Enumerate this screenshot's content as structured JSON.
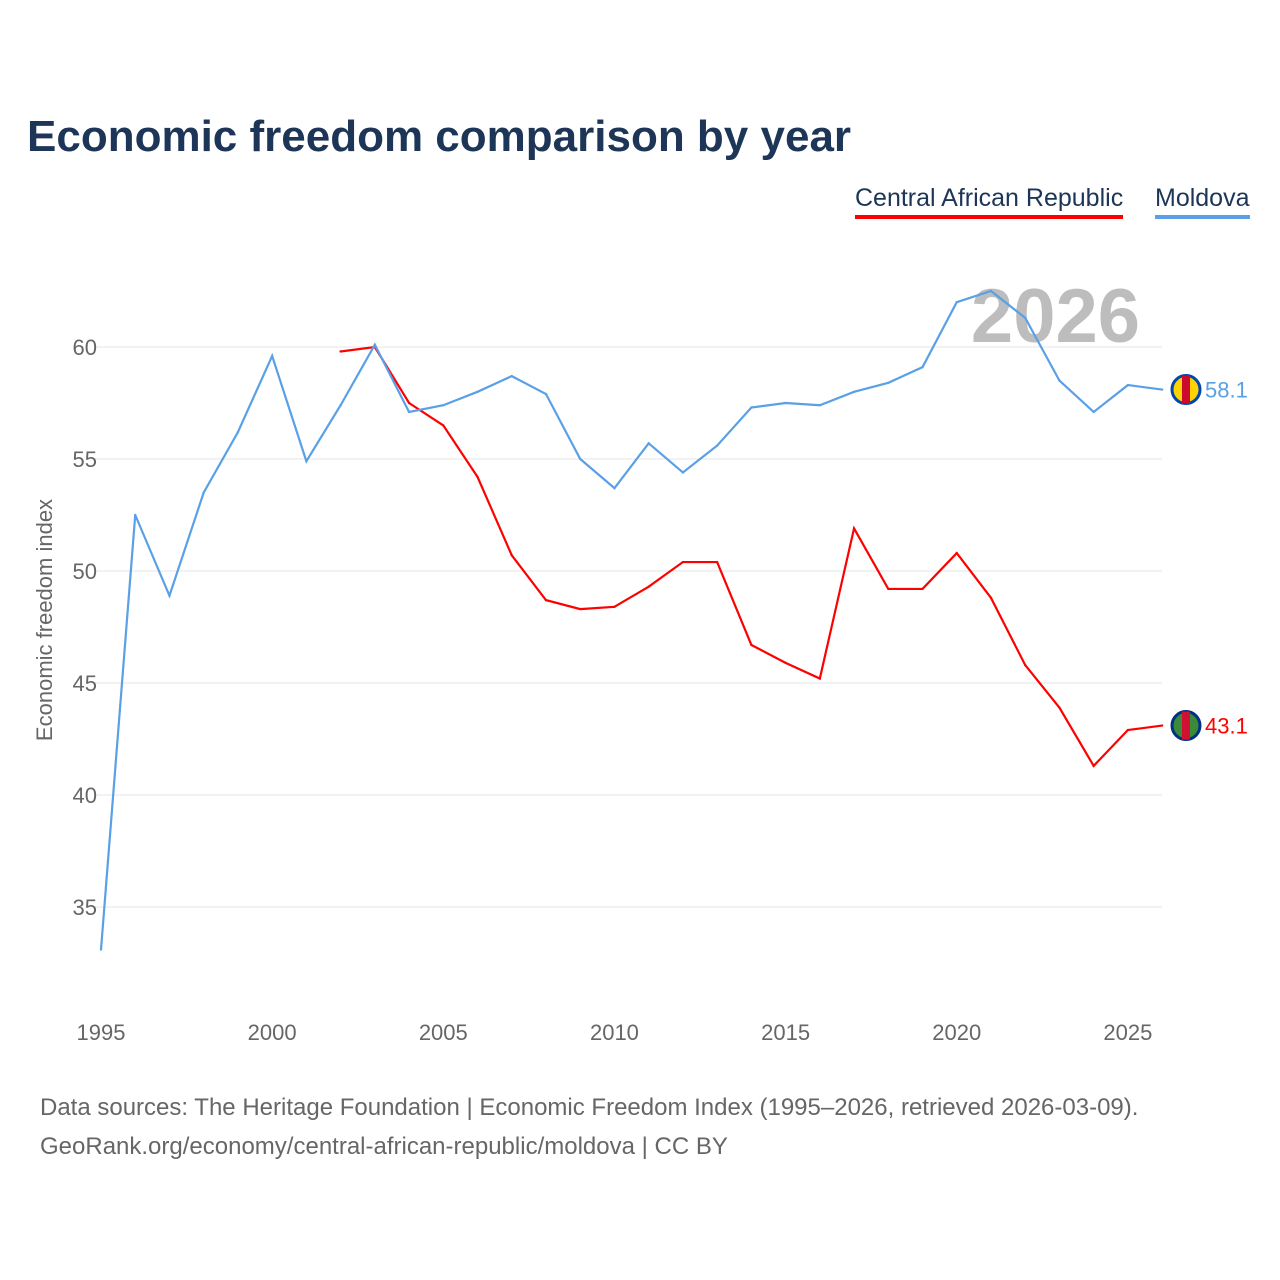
{
  "chart_data": {
    "type": "line",
    "title": "Economic freedom comparison by year",
    "ylabel": "Economic freedom index",
    "xlabel": "",
    "ylim": [
      31,
      64
    ],
    "xlim": [
      1995,
      2026
    ],
    "yticks": [
      35,
      40,
      45,
      50,
      55,
      60
    ],
    "xticks": [
      1995,
      2000,
      2005,
      2010,
      2015,
      2020,
      2025
    ],
    "year_label": "2026",
    "legend_placement": "top-right",
    "series": [
      {
        "name": "Central African Republic",
        "color": "#ff0000",
        "end_label": "43.1",
        "x": [
          2002,
          2003,
          2004,
          2005,
          2006,
          2007,
          2008,
          2009,
          2010,
          2011,
          2012,
          2013,
          2014,
          2015,
          2016,
          2017,
          2018,
          2019,
          2020,
          2021,
          2022,
          2023,
          2024,
          2025,
          2026
        ],
        "values": [
          59.8,
          60.0,
          57.5,
          56.5,
          54.2,
          50.7,
          48.7,
          48.3,
          48.4,
          49.3,
          50.4,
          50.4,
          46.7,
          45.9,
          45.2,
          51.9,
          49.2,
          49.2,
          50.8,
          48.8,
          45.8,
          43.9,
          41.3,
          42.9,
          43.1
        ]
      },
      {
        "name": "Moldova",
        "color": "#5aa0e6",
        "end_label": "58.1",
        "x": [
          1995,
          1996,
          1997,
          1998,
          1999,
          2000,
          2001,
          2002,
          2003,
          2004,
          2005,
          2006,
          2007,
          2008,
          2009,
          2010,
          2011,
          2012,
          2013,
          2014,
          2015,
          2016,
          2017,
          2018,
          2019,
          2020,
          2021,
          2022,
          2023,
          2024,
          2025,
          2026
        ],
        "values": [
          33.1,
          52.5,
          48.9,
          53.5,
          56.2,
          59.6,
          54.9,
          57.4,
          60.1,
          57.1,
          57.4,
          58.0,
          58.7,
          57.9,
          55.0,
          53.7,
          55.7,
          54.4,
          55.6,
          57.3,
          57.5,
          57.4,
          58.0,
          58.4,
          59.1,
          62.0,
          62.5,
          61.3,
          58.5,
          57.1,
          58.3,
          58.1
        ]
      }
    ]
  },
  "source_line1": "Data sources: The Heritage Foundation | Economic Freedom Index (1995–2026, retrieved 2026-03-09).",
  "source_line2": "GeoRank.org/economy/central-african-republic/moldova | CC BY"
}
